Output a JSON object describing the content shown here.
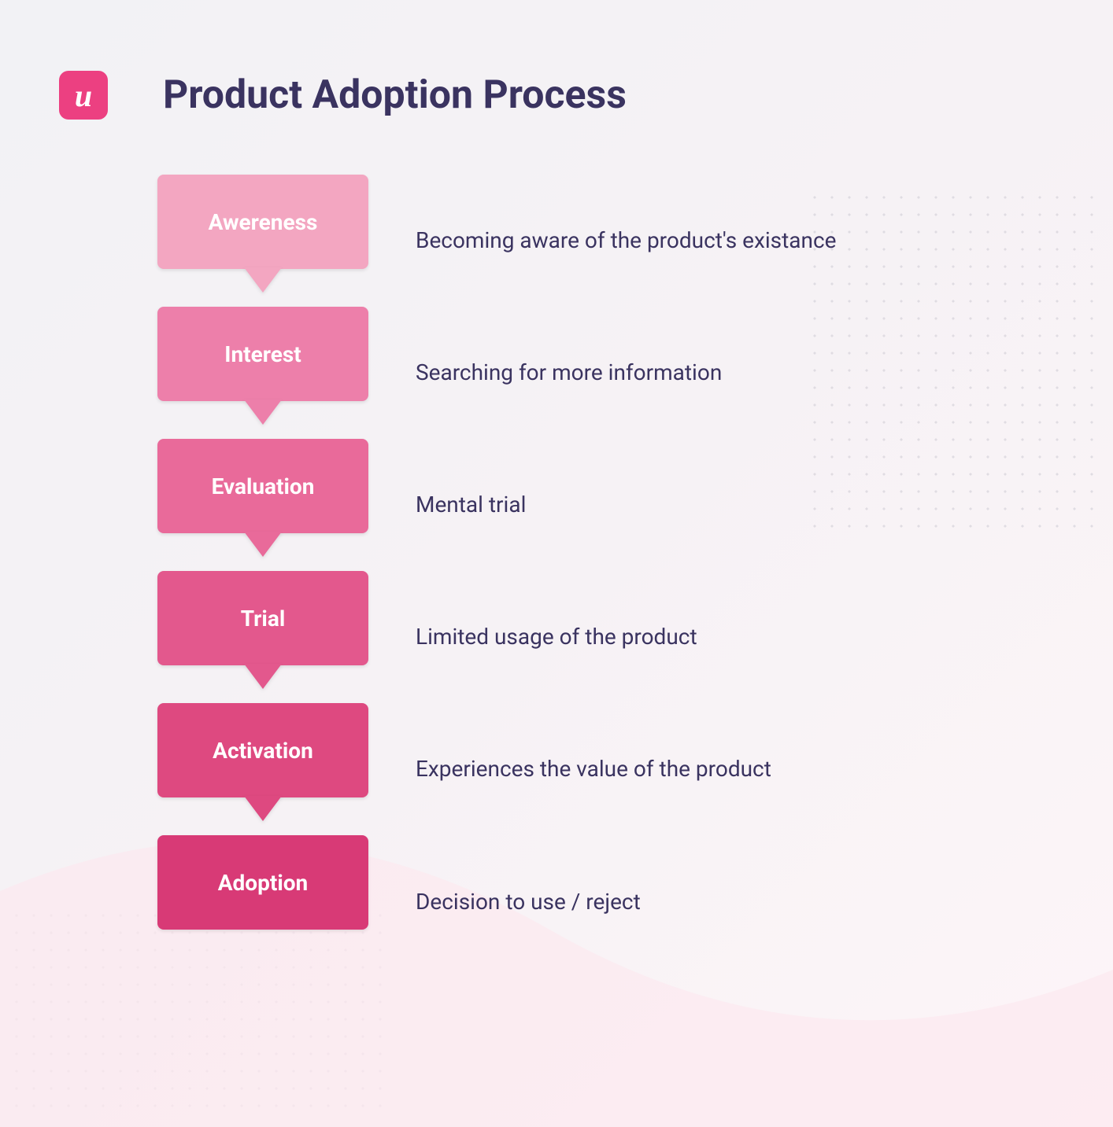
{
  "header": {
    "logo_letter": "u",
    "title": "Product Adoption Process"
  },
  "styling": {
    "title_color": "#3a3360",
    "title_fontsize": 50,
    "description_color": "#3a3360",
    "description_fontsize": 28,
    "stage_label_color": "#ffffff",
    "stage_label_fontsize": 28,
    "logo_bg": "#ec4081",
    "background_gradient_start": "#f2f2f5",
    "background_gradient_end": "#fdf5f8",
    "dot_color": "#d0cdd6",
    "stage_box_width": 268,
    "stage_box_height": 120,
    "stage_box_radius": 8,
    "arrow_width": 48,
    "arrow_height": 32
  },
  "diagram": {
    "type": "flowchart",
    "direction": "vertical",
    "stages": [
      {
        "label": "Awereness",
        "description": "Becoming aware of the product's existance",
        "color": "#f3a6c1",
        "has_arrow": true
      },
      {
        "label": "Interest",
        "description": "Searching for more information",
        "color": "#ed7faa",
        "has_arrow": true
      },
      {
        "label": "Evaluation",
        "description": "Mental trial",
        "color": "#e96a9a",
        "has_arrow": true
      },
      {
        "label": "Trial",
        "description": "Limited usage of the product",
        "color": "#e3588d",
        "has_arrow": true
      },
      {
        "label": "Activation",
        "description": "Experiences the value of the product",
        "color": "#de4980",
        "has_arrow": true
      },
      {
        "label": "Adoption",
        "description": "Decision to use / reject",
        "color": "#d83a76",
        "has_arrow": false
      }
    ]
  }
}
